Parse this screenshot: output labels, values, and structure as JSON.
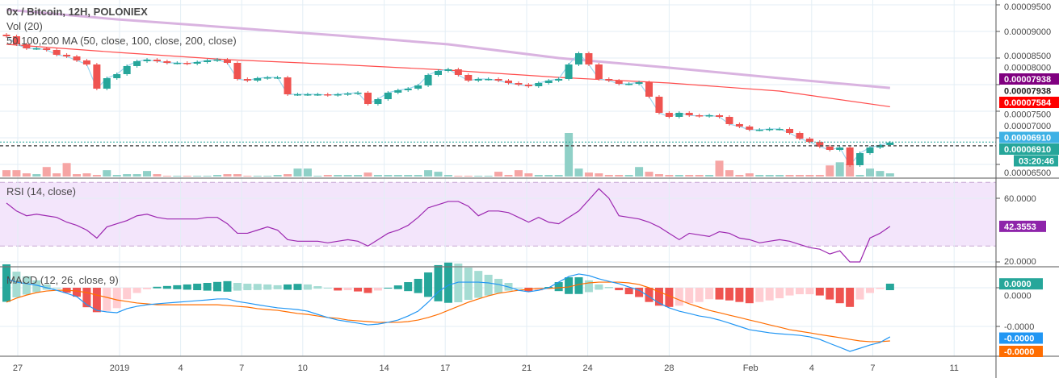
{
  "header": {
    "title": "0x / Bitcoin, 12H, POLONIEX",
    "volume_legend": "Vol (20)",
    "ma_legend": "50,100,200 MA (50, close, 100, close, 200, close)"
  },
  "rsi_legend": "RSI (14, close)",
  "macd_legend": "MACD (12, 26, close, 9)",
  "colors": {
    "up": "#26a69a",
    "down": "#ef5350",
    "up_volume": "#8fd0c7",
    "down_volume": "#f6a5a4",
    "ma100": "#ff4d4d",
    "ma200": "#d9b3e0",
    "ma50": "#9cd6f0",
    "rsi_line": "#9c27b0",
    "rsi_band": "#f3e5fb",
    "macd": "#2196f3",
    "signal": "#ff6d00",
    "hist_up": "#26a69a",
    "hist_up_light": "#a5dcd3",
    "hist_down": "#ef5350",
    "hist_down_light": "#ffcdd2"
  },
  "price_axis": {
    "ticks": [
      "0.00009500",
      "0.00009000",
      "0.00008500",
      "0.00008000",
      "0.00007500",
      "0.00007000",
      "0.00006500"
    ],
    "tick_values": [
      9.5e-05,
      9e-05,
      8.5e-05,
      8e-05,
      7.5e-05,
      7e-05,
      6.5e-05
    ],
    "labels": [
      {
        "text": "0.00007938",
        "value": 7.938e-05,
        "bg": "#800080",
        "fg": "#ffffff"
      },
      {
        "text": "0.00007938",
        "value": 7.84e-05,
        "bg": "#ffffff",
        "fg": "#222222"
      },
      {
        "text": "0.00007584",
        "value": 7.584e-05,
        "bg": "#ff0000",
        "fg": "#ffffff"
      },
      {
        "text": "0.00006910",
        "value": 6.93e-05,
        "bg": "#3eb1e5",
        "fg": "#ffffff"
      },
      {
        "text": "0.00006910",
        "value": 6.86e-05,
        "bg": "#26a69a",
        "fg": "#ffffff"
      }
    ],
    "countdown": "03:20:46"
  },
  "rsi_axis": {
    "ticks": [
      "60.0000",
      "20.0000"
    ],
    "tick_values": [
      60,
      20
    ],
    "band": [
      30,
      70
    ],
    "current": "42.3553"
  },
  "macd_axis": {
    "ticks": [
      "0.0000",
      "-0.0000"
    ],
    "tick_values": [
      0,
      -2e-06
    ],
    "labels": [
      {
        "text": "0.0000",
        "value": 2e-07,
        "bg": "#26a69a"
      },
      {
        "text": "-0.0000",
        "value": -2.5e-06,
        "bg": "#2196f3"
      },
      {
        "text": "-0.0000",
        "value": -3.3e-06,
        "bg": "#ff6d00"
      }
    ]
  },
  "time_axis": {
    "ticks": [
      {
        "label": "27",
        "date": "2018-12-27"
      },
      {
        "label": "2019",
        "date": "2019-01-01"
      },
      {
        "label": "4",
        "date": "2019-01-04"
      },
      {
        "label": "7",
        "date": "2019-01-07"
      },
      {
        "label": "10",
        "date": "2019-01-10"
      },
      {
        "label": "14",
        "date": "2019-01-14"
      },
      {
        "label": "17",
        "date": "2019-01-17"
      },
      {
        "label": "21",
        "date": "2019-01-21"
      },
      {
        "label": "24",
        "date": "2019-01-24"
      },
      {
        "label": "28",
        "date": "2019-01-28"
      },
      {
        "label": "Feb",
        "date": "2019-02-01"
      },
      {
        "label": "4",
        "date": "2019-02-04"
      },
      {
        "label": "7",
        "date": "2019-02-07"
      },
      {
        "label": "11",
        "date": "2019-02-11"
      }
    ]
  },
  "chart_data": {
    "type": "candlestick",
    "interval": "12H",
    "first_candle": "2018-12-26T12:00",
    "close": [
      8.909e-05,
      8.758e-05,
      8.682e-05,
      8.682e-05,
      8.652e-05,
      8.561e-05,
      8.53e-05,
      8.455e-05,
      8.379e-05,
      7.924e-05,
      8.121e-05,
      8.197e-05,
      8.349e-05,
      8.44e-05,
      8.47e-05,
      8.44e-05,
      8.409e-05,
      8.409e-05,
      8.394e-05,
      8.424e-05,
      8.455e-05,
      8.47e-05,
      8.409e-05,
      8.106e-05,
      8.076e-05,
      8.121e-05,
      8.136e-05,
      8.136e-05,
      7.818e-05,
      7.818e-05,
      7.818e-05,
      7.818e-05,
      7.803e-05,
      7.818e-05,
      7.833e-05,
      7.849e-05,
      7.636e-05,
      7.727e-05,
      7.849e-05,
      7.894e-05,
      7.924e-05,
      7.985e-05,
      8.182e-05,
      8.258e-05,
      8.288e-05,
      8.182e-05,
      8.076e-05,
      8.106e-05,
      8.106e-05,
      8.076e-05,
      8.03e-05,
      8e-05,
      7.97e-05,
      8.03e-05,
      8.076e-05,
      8.106e-05,
      8.379e-05,
      8.591e-05,
      8.379e-05,
      8.106e-05,
      8.076e-05,
      8.015e-05,
      8.015e-05,
      8.045e-05,
      7.773e-05,
      7.47e-05,
      7.394e-05,
      7.47e-05,
      7.424e-05,
      7.409e-05,
      7.424e-05,
      7.394e-05,
      7.258e-05,
      7.212e-05,
      7.152e-05,
      7.152e-05,
      7.167e-05,
      7.167e-05,
      7.091e-05,
      6.985e-05,
      6.924e-05,
      6.834e-05,
      6.773e-05,
      6.818e-05,
      6.485e-05,
      6.712e-05,
      6.818e-05,
      6.864e-05,
      6.91e-05
    ],
    "volume": [
      8,
      8,
      4,
      3,
      12,
      4,
      17,
      3,
      4,
      2,
      8,
      2,
      3,
      3,
      7,
      3,
      1,
      1,
      1,
      1,
      1,
      2,
      3,
      3,
      1,
      1,
      1,
      2,
      3,
      10,
      10,
      1,
      2,
      2,
      2,
      2,
      5,
      2,
      2,
      2,
      2,
      2,
      8,
      6,
      2,
      1,
      1,
      1,
      1,
      6,
      2,
      8,
      4,
      2,
      2,
      2,
      55,
      10,
      5,
      4,
      2,
      2,
      2,
      12,
      6,
      3,
      2,
      2,
      2,
      2,
      2,
      20,
      8,
      2,
      4,
      2,
      2,
      2,
      2,
      2,
      2,
      2,
      14,
      18,
      16,
      2,
      10,
      7,
      4
    ],
    "ma100": {
      "every_n_candles": 11,
      "values": [
        8.758e-05,
        8.606e-05,
        8.47e-05,
        8.379e-05,
        8.273e-05,
        8.136e-05,
        8.03e-05,
        7.879e-05,
        7.584e-05
      ]
    },
    "ma200": {
      "every_n_candles": 11,
      "values": [
        9.409e-05,
        9.227e-05,
        9.076e-05,
        8.924e-05,
        8.758e-05,
        8.5e-05,
        8.318e-05,
        8.121e-05,
        7.938e-05
      ]
    },
    "rsi": [
      57,
      52,
      49,
      50,
      49,
      48,
      45,
      43,
      40,
      35,
      42,
      44,
      46,
      49,
      50,
      48,
      47,
      47,
      47,
      47,
      48,
      48,
      44,
      38,
      38,
      40,
      42,
      40,
      34,
      33,
      33,
      33,
      32,
      33,
      34,
      33,
      30,
      34,
      38,
      40,
      43,
      48,
      54,
      56,
      58,
      58,
      55,
      49,
      52,
      52,
      51,
      48,
      45,
      48,
      45,
      44,
      48,
      52,
      59,
      66,
      60,
      49,
      48,
      47,
      45,
      42,
      38,
      34,
      38,
      37,
      36,
      39,
      38,
      35,
      34,
      32,
      33,
      34,
      33,
      31,
      29,
      28,
      25,
      27,
      20,
      20,
      35,
      38,
      42.3553
    ],
    "macd": [
      4.6e-07,
      2.9e-07,
      2.1e-07,
      1.3e-07,
      0,
      -1.3e-07,
      -2.9e-07,
      -4.6e-07,
      -8.8e-07,
      -1.17e-06,
      -1.25e-06,
      -1.29e-06,
      -1.08e-06,
      -9.6e-07,
      -8.8e-07,
      -8.3e-07,
      -7.9e-07,
      -7.5e-07,
      -7.1e-07,
      -6.7e-07,
      -6.3e-07,
      -5.8e-07,
      -5.8e-07,
      -7.1e-07,
      -7.9e-07,
      -8.8e-07,
      -9.6e-07,
      -1.04e-06,
      -1.08e-06,
      -1.13e-06,
      -1.21e-06,
      -1.38e-06,
      -1.54e-06,
      -1.67e-06,
      -1.75e-06,
      -1.83e-06,
      -1.92e-06,
      -1.88e-06,
      -1.79e-06,
      -1.67e-06,
      -1.46e-06,
      -1.21e-06,
      -7.5e-07,
      -2.1e-07,
      1.3e-07,
      2.9e-07,
      2.9e-07,
      2.9e-07,
      2.5e-07,
      1.7e-07,
      4e-08,
      -1.3e-07,
      -2.1e-07,
      -1.3e-07,
      0,
      2.9e-07,
      5.8e-07,
      7.1e-07,
      6.3e-07,
      4.6e-07,
      3.3e-07,
      2.1e-07,
      4e-08,
      -1.3e-07,
      -4.6e-07,
      -7.9e-07,
      -1.04e-06,
      -1.21e-06,
      -1.33e-06,
      -1.46e-06,
      -1.54e-06,
      -1.67e-06,
      -1.83e-06,
      -2e-06,
      -2.17e-06,
      -2.25e-06,
      -2.33e-06,
      -2.38e-06,
      -2.42e-06,
      -2.46e-06,
      -2.54e-06,
      -2.67e-06,
      -2.88e-06,
      -3.08e-06,
      -3.29e-06,
      -3.13e-06,
      -2.96e-06,
      -2.83e-06,
      -2.54e-06
    ],
    "signal": [
      -7.5e-07,
      -5.4e-07,
      -3.8e-07,
      -2.5e-07,
      -1.7e-07,
      -1.3e-07,
      -1.3e-07,
      -1.7e-07,
      -2.5e-07,
      -3.8e-07,
      -5e-07,
      -6.3e-07,
      -7.1e-07,
      -7.9e-07,
      -8.3e-07,
      -8.8e-07,
      -8.8e-07,
      -8.8e-07,
      -8.8e-07,
      -8.8e-07,
      -8.8e-07,
      -8.8e-07,
      -9.2e-07,
      -9.6e-07,
      -1e-06,
      -1.08e-06,
      -1.13e-06,
      -1.17e-06,
      -1.25e-06,
      -1.33e-06,
      -1.38e-06,
      -1.46e-06,
      -1.54e-06,
      -1.58e-06,
      -1.67e-06,
      -1.71e-06,
      -1.75e-06,
      -1.79e-06,
      -1.79e-06,
      -1.79e-06,
      -1.75e-06,
      -1.67e-06,
      -1.54e-06,
      -1.38e-06,
      -1.17e-06,
      -9.6e-07,
      -7.5e-07,
      -5.8e-07,
      -4.2e-07,
      -2.9e-07,
      -2.1e-07,
      -1.3e-07,
      -8e-08,
      -4e-08,
      -4e-08,
      0,
      4e-08,
      1.7e-07,
      2.5e-07,
      2.9e-07,
      2.9e-07,
      2.9e-07,
      2.5e-07,
      1.7e-07,
      0,
      -2.1e-07,
      -4.2e-07,
      -6.3e-07,
      -8.3e-07,
      -1e-06,
      -1.17e-06,
      -1.29e-06,
      -1.42e-06,
      -1.54e-06,
      -1.67e-06,
      -1.79e-06,
      -1.92e-06,
      -2.04e-06,
      -2.17e-06,
      -2.25e-06,
      -2.33e-06,
      -2.42e-06,
      -2.5e-06,
      -2.58e-06,
      -2.67e-06,
      -2.75e-06,
      -2.79e-06,
      -2.79e-06,
      -2.75e-06
    ]
  }
}
